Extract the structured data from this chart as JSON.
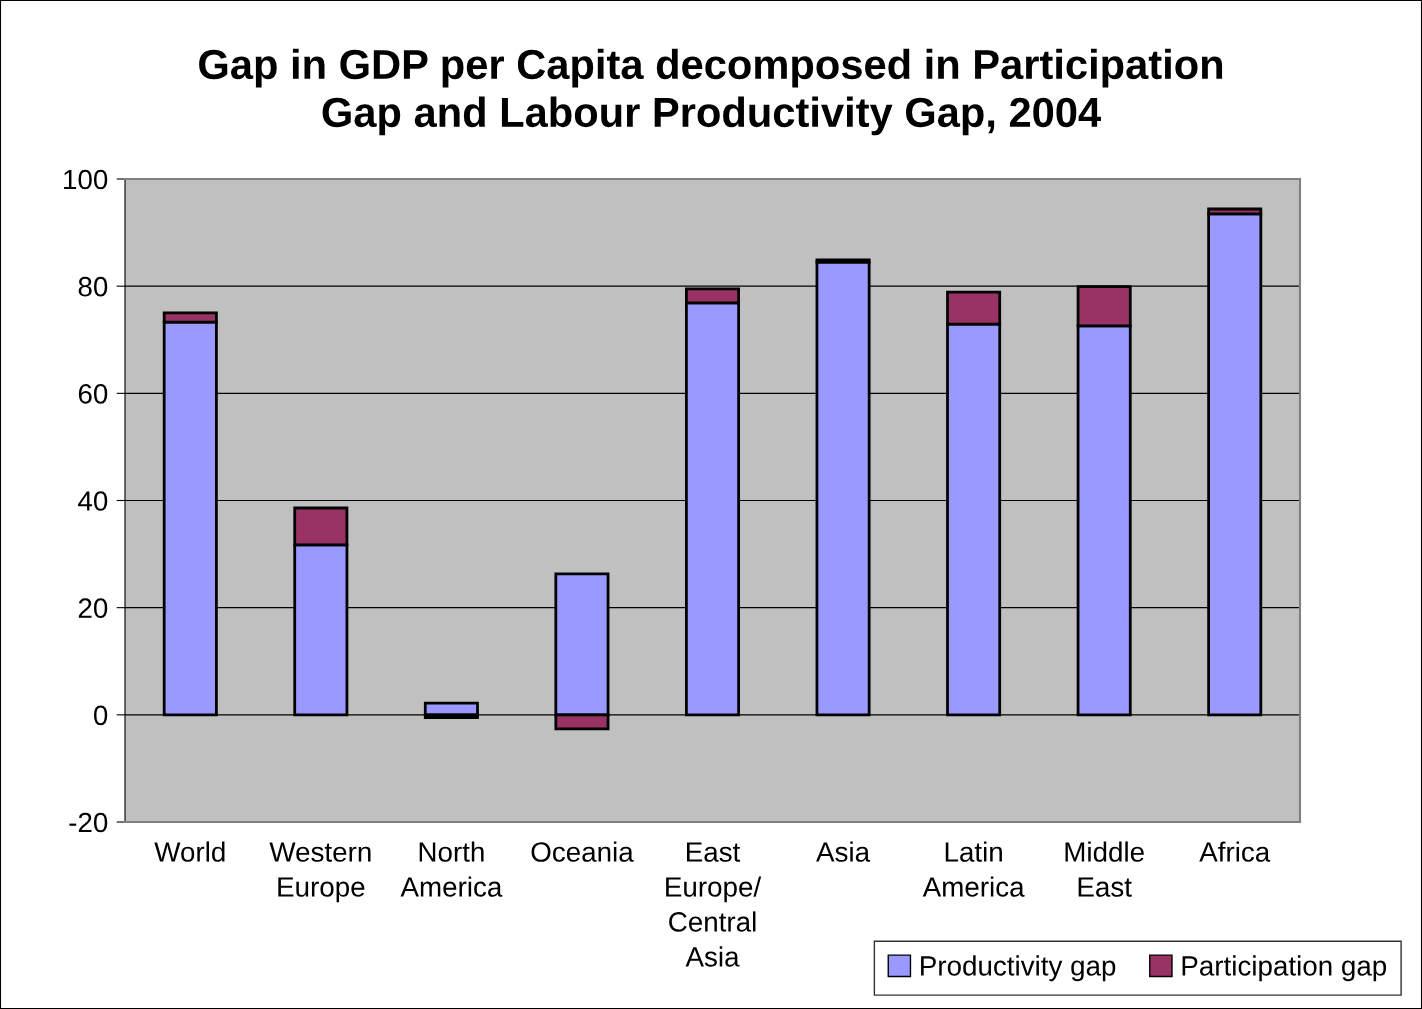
{
  "chart_data": {
    "type": "bar",
    "stacked": true,
    "title": "Gap in GDP per Capita decomposed in Participation\nGap and Labour Productivity Gap, 2004",
    "categories": [
      "World",
      "Western\nEurope",
      "North\nAmerica",
      "Oceania",
      "East\nEurope/\nCentral\nAsia",
      "Asia",
      "Latin\nAmerica",
      "Middle\nEast",
      "Africa"
    ],
    "series": [
      {
        "name": "Productivity gap",
        "color": "#9999ff",
        "values": [
          73.3,
          31.7,
          2.2,
          26.3,
          76.9,
          84.5,
          72.9,
          72.6,
          93.5
        ]
      },
      {
        "name": "Participation gap",
        "color": "#993366",
        "values": [
          1.7,
          6.9,
          -0.5,
          -2.6,
          2.6,
          0.4,
          6.0,
          7.3,
          0.9
        ]
      }
    ],
    "ylim": [
      -20,
      100
    ],
    "yticks": [
      -20,
      0,
      20,
      40,
      60,
      80,
      100
    ],
    "grid": "y",
    "legend": "bottom right"
  }
}
